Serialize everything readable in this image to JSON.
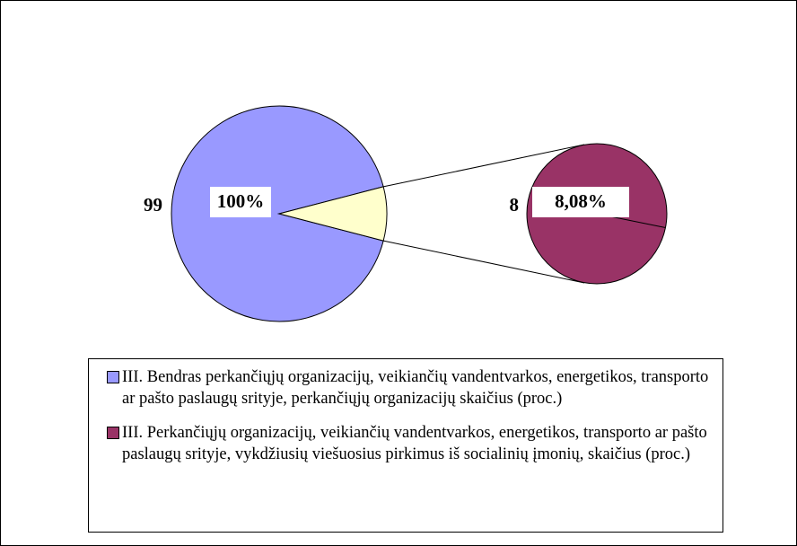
{
  "chart_data": {
    "type": "pie",
    "series": [
      {
        "name": "III. Bendras perkančiųjų organizacijų, veikiančių vandentvarkos, energetikos, transporto ar pašto paslaugų srityje, perkančiųjų organizacijų skaičius (proc.)",
        "color": "#9999ff"
      },
      {
        "name": "III. Perkančiųjų organizacijų, veikiančių vandentvarkos, energetikos, transporto ar pašto paslaugų srityje, vykdžiusių viešuosius pirkimus iš socialinių įmonių, skaičius (proc.)",
        "color": "#993366"
      }
    ],
    "counts": [
      99,
      8
    ],
    "values": [
      100,
      8.08
    ],
    "value_labels": [
      "100%",
      "8,08%"
    ],
    "detail_color": "#ffffcc"
  }
}
